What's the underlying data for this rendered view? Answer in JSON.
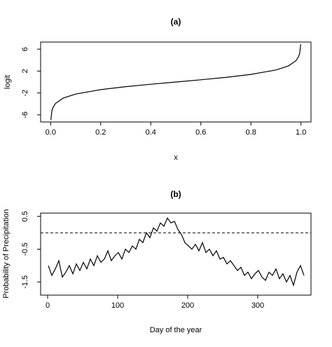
{
  "chart_data": [
    {
      "type": "line",
      "title": "(a)",
      "xlabel": "x",
      "ylabel": "logit",
      "xlim": [
        -0.04,
        1.04
      ],
      "ylim": [
        -7.3,
        7.3
      ],
      "xticks": [
        0.0,
        0.2,
        0.4,
        0.6,
        0.8,
        1.0
      ],
      "xtick_labels": [
        "0.0",
        "0.2",
        "0.4",
        "0.6",
        "0.8",
        "1.0"
      ],
      "yticks": [
        6,
        2,
        -2,
        -6
      ],
      "ytick_labels": [
        "6",
        "2",
        "-2",
        "-6"
      ],
      "series": [
        {
          "x": [
            0.001,
            0.005,
            0.01,
            0.02,
            0.05,
            0.1,
            0.2,
            0.3,
            0.4,
            0.5,
            0.6,
            0.7,
            0.8,
            0.9,
            0.95,
            0.98,
            0.99,
            0.995,
            0.999
          ],
          "y": [
            -6.91,
            -5.29,
            -4.6,
            -3.89,
            -2.94,
            -2.2,
            -1.39,
            -0.85,
            -0.41,
            0.0,
            0.41,
            0.85,
            1.39,
            2.2,
            2.94,
            3.89,
            4.6,
            5.29,
            6.91
          ]
        }
      ],
      "grid": false
    },
    {
      "type": "line",
      "title": "(b)",
      "xlabel": "Day of the year",
      "ylabel": "Probability of Precipitation",
      "xlim": [
        -10,
        376
      ],
      "ylim": [
        -1.9,
        0.6
      ],
      "xticks": [
        0,
        100,
        200,
        300
      ],
      "xtick_labels": [
        "0",
        "100",
        "200",
        "300"
      ],
      "yticks": [
        0.5,
        -0.5,
        -1.5
      ],
      "ytick_labels": [
        "0.5",
        "-0.5",
        "-1.5"
      ],
      "reference_line": {
        "y": 0,
        "style": "dashed"
      },
      "series": [
        {
          "x": [
            1,
            6,
            11,
            16,
            21,
            26,
            31,
            36,
            41,
            46,
            51,
            56,
            61,
            66,
            71,
            76,
            81,
            86,
            91,
            96,
            101,
            106,
            111,
            116,
            121,
            126,
            131,
            136,
            141,
            146,
            151,
            156,
            161,
            166,
            171,
            176,
            181,
            186,
            191,
            196,
            201,
            206,
            211,
            216,
            221,
            226,
            231,
            236,
            241,
            246,
            251,
            256,
            261,
            266,
            271,
            276,
            281,
            286,
            291,
            296,
            301,
            306,
            311,
            316,
            321,
            326,
            331,
            336,
            341,
            346,
            351,
            356,
            361,
            366
          ],
          "y": [
            -1.0,
            -1.3,
            -1.1,
            -0.85,
            -1.35,
            -1.2,
            -1.0,
            -1.25,
            -0.95,
            -1.15,
            -0.9,
            -1.1,
            -0.8,
            -1.0,
            -0.7,
            -0.9,
            -0.8,
            -0.55,
            -0.85,
            -0.7,
            -0.6,
            -0.8,
            -0.5,
            -0.6,
            -0.4,
            -0.5,
            -0.2,
            -0.3,
            0.0,
            -0.15,
            0.15,
            0.05,
            0.3,
            0.2,
            0.45,
            0.3,
            0.35,
            0.1,
            -0.05,
            -0.3,
            -0.4,
            -0.5,
            -0.35,
            -0.55,
            -0.3,
            -0.6,
            -0.5,
            -0.7,
            -0.55,
            -0.8,
            -0.75,
            -0.95,
            -0.85,
            -1.0,
            -1.15,
            -1.05,
            -1.3,
            -1.2,
            -1.4,
            -1.25,
            -1.15,
            -1.35,
            -1.45,
            -1.2,
            -1.3,
            -1.1,
            -1.4,
            -1.25,
            -1.5,
            -1.3,
            -1.6,
            -1.2,
            -1.0,
            -1.3
          ]
        }
      ],
      "grid": false
    }
  ]
}
